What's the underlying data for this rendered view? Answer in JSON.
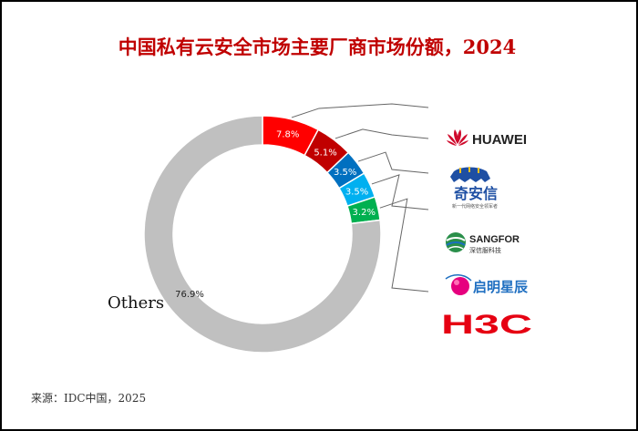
{
  "title": "中国私有云安全市场主要厂商市场份额，2024",
  "source": "来源：IDC中国，2025",
  "chart_data": {
    "type": "pie",
    "variant": "donut",
    "title": "中国私有云安全市场主要厂商市场份额，2024",
    "slices": [
      {
        "name": "HUAWEI",
        "value": 7.8,
        "label": "7.8%",
        "color": "#ff0000"
      },
      {
        "name": "奇安信",
        "value": 5.1,
        "label": "5.1%",
        "color": "#c00000"
      },
      {
        "name": "SANGFOR",
        "value": 3.5,
        "label": "3.5%",
        "color": "#0070c0"
      },
      {
        "name": "启明星辰",
        "value": 3.5,
        "label": "3.5%",
        "color": "#00b0f0"
      },
      {
        "name": "H3C",
        "value": 3.2,
        "label": "3.2%",
        "color": "#00b050"
      },
      {
        "name": "Others",
        "value": 76.9,
        "label": "76.9%",
        "color": "#c0c0c0"
      }
    ],
    "others_label": "Others",
    "legend": "right (logos)"
  },
  "logos": {
    "huawei": {
      "text": "HUAWEI",
      "color": "#cf0a2c"
    },
    "qianxin": {
      "text": "奇安信",
      "sub": "新一代网络安全领军者",
      "color": "#1e4fa3"
    },
    "sangfor": {
      "text": "SANGFOR",
      "sub": "深信服科技",
      "color": "#222222"
    },
    "venus": {
      "text": "启明星辰",
      "color": "#1f6fc1"
    },
    "h3c": {
      "text": "H3C",
      "color": "#e60012"
    }
  }
}
